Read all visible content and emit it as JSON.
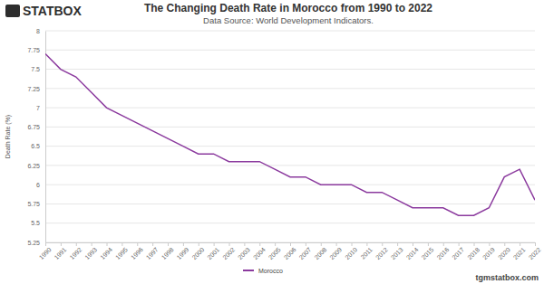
{
  "chart_data": {
    "type": "line",
    "title": "The Changing Death Rate in Morocco from 1990 to 2022",
    "subtitle": "Data Source: World Development Indicators.",
    "y_label": "Death Rate (%)",
    "annotations": [
      "STATBOX",
      "tgmstatbox.com"
    ],
    "categories": [
      "1990",
      "1991",
      "1992",
      "1993",
      "1994",
      "1995",
      "1996",
      "1997",
      "1998",
      "1999",
      "2000",
      "2001",
      "2002",
      "2003",
      "2004",
      "2005",
      "2006",
      "2007",
      "2008",
      "2009",
      "2010",
      "2011",
      "2012",
      "2013",
      "2014",
      "2015",
      "2016",
      "2017",
      "2018",
      "2019",
      "2020",
      "2021",
      "2022"
    ],
    "series": [
      {
        "name": "Morocco",
        "color": "#8b3a9e",
        "values": [
          7.7,
          7.5,
          7.4,
          7.2,
          7.0,
          6.9,
          6.8,
          6.7,
          6.6,
          6.5,
          6.4,
          6.4,
          6.3,
          6.3,
          6.3,
          6.2,
          6.1,
          6.1,
          6.0,
          6.0,
          6.0,
          5.9,
          5.9,
          5.8,
          5.7,
          5.7,
          5.7,
          5.6,
          5.6,
          5.7,
          6.1,
          6.2,
          5.8
        ]
      }
    ],
    "ylim": [
      5.25,
      8
    ],
    "yticks": [
      5.25,
      5.5,
      5.75,
      6,
      6.25,
      6.5,
      6.75,
      7,
      7.25,
      7.5,
      7.75,
      8
    ],
    "grid": true,
    "legend": "bottom"
  }
}
